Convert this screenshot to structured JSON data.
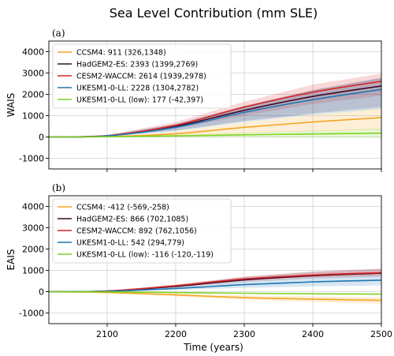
{
  "chart_data": {
    "type": "line",
    "title": "Sea Level Contribution (mm SLE)",
    "xlabel": "Time (years)",
    "xlim": [
      2015,
      2500
    ],
    "xticks": [
      2100,
      2200,
      2300,
      2400,
      2500
    ],
    "ylim": [
      -1500,
      4500
    ],
    "yticks": [
      -1000,
      0,
      1000,
      2000,
      3000,
      4000
    ],
    "grid": true,
    "legend_position": "upper-left",
    "panels": [
      {
        "label": "(a)",
        "ylabel": "WAIS",
        "series": [
          {
            "name": "CCSM4: 911 (326,1348)",
            "color": "#f5a623",
            "x": [
              2015,
              2100,
              2200,
              2300,
              2400,
              2500
            ],
            "values": [
              0,
              20,
              150,
              450,
              700,
              911
            ],
            "lower": [
              0,
              10,
              60,
              160,
              260,
              326
            ],
            "upper": [
              0,
              30,
              250,
              700,
              1050,
              1348
            ]
          },
          {
            "name": "HadGEM2-ES: 2393 (1399,2769)",
            "color": "#3b0a2e",
            "x": [
              2015,
              2100,
              2200,
              2300,
              2400,
              2500
            ],
            "values": [
              0,
              60,
              500,
              1250,
              1900,
              2393
            ],
            "lower": [
              0,
              40,
              300,
              750,
              1100,
              1399
            ],
            "upper": [
              0,
              80,
              600,
              1450,
              2200,
              2769
            ]
          },
          {
            "name": "CESM2-WACCM: 2614 (1939,2978)",
            "color": "#d62728",
            "x": [
              2015,
              2100,
              2200,
              2300,
              2400,
              2500
            ],
            "values": [
              0,
              60,
              550,
              1400,
              2100,
              2614
            ],
            "lower": [
              0,
              40,
              400,
              1000,
              1550,
              1939
            ],
            "upper": [
              0,
              90,
              700,
              1650,
              2450,
              2978
            ]
          },
          {
            "name": "UKESM1-0-LL: 2228 (1304,2782)",
            "color": "#1f77b4",
            "x": [
              2015,
              2100,
              2200,
              2300,
              2400,
              2500
            ],
            "values": [
              0,
              50,
              450,
              1150,
              1750,
              2228
            ],
            "lower": [
              0,
              30,
              270,
              700,
              1050,
              1304
            ],
            "upper": [
              0,
              70,
              600,
              1450,
              2200,
              2782
            ]
          },
          {
            "name": "UKESM1-0-LL (low): 177 (-42,397)",
            "color": "#7ed321",
            "x": [
              2015,
              2100,
              2200,
              2300,
              2400,
              2500
            ],
            "values": [
              0,
              10,
              50,
              100,
              140,
              177
            ],
            "lower": [
              0,
              0,
              -10,
              -20,
              -30,
              -42
            ],
            "upper": [
              0,
              20,
              100,
              200,
              300,
              397
            ]
          }
        ]
      },
      {
        "label": "(b)",
        "ylabel": "EAIS",
        "series": [
          {
            "name": "CCSM4: -412 (-569,-258)",
            "color": "#f5a623",
            "x": [
              2015,
              2100,
              2200,
              2300,
              2400,
              2500
            ],
            "values": [
              0,
              -40,
              -150,
              -280,
              -350,
              -412
            ],
            "lower": [
              0,
              -60,
              -220,
              -380,
              -480,
              -569
            ],
            "upper": [
              0,
              -20,
              -90,
              -170,
              -220,
              -258
            ]
          },
          {
            "name": "HadGEM2-ES: 866 (702,1085)",
            "color": "#3b0a2e",
            "x": [
              2015,
              2100,
              2200,
              2300,
              2400,
              2500
            ],
            "values": [
              0,
              30,
              250,
              550,
              750,
              866
            ],
            "lower": [
              0,
              20,
              200,
              450,
              620,
              702
            ],
            "upper": [
              0,
              40,
              320,
              700,
              950,
              1085
            ]
          },
          {
            "name": "CESM2-WACCM: 892 (762,1056)",
            "color": "#d62728",
            "x": [
              2015,
              2100,
              2200,
              2300,
              2400,
              2500
            ],
            "values": [
              0,
              30,
              280,
              600,
              780,
              892
            ],
            "lower": [
              0,
              20,
              230,
              500,
              670,
              762
            ],
            "upper": [
              0,
              45,
              330,
              700,
              920,
              1056
            ]
          },
          {
            "name": "UKESM1-0-LL: 542 (294,779)",
            "color": "#1f77b4",
            "x": [
              2015,
              2100,
              2200,
              2300,
              2400,
              2500
            ],
            "values": [
              0,
              20,
              150,
              330,
              460,
              542
            ],
            "lower": [
              0,
              10,
              80,
              180,
              250,
              294
            ],
            "upper": [
              0,
              30,
              220,
              480,
              660,
              779
            ]
          },
          {
            "name": "UKESM1-0-LL (low): -116 (-120,-119)",
            "color": "#7ed321",
            "x": [
              2015,
              2100,
              2200,
              2300,
              2400,
              2500
            ],
            "values": [
              0,
              -10,
              -40,
              -75,
              -100,
              -116
            ],
            "lower": [
              0,
              -12,
              -45,
              -80,
              -105,
              -120
            ],
            "upper": [
              0,
              -8,
              -35,
              -70,
              -98,
              -119
            ]
          }
        ]
      }
    ]
  }
}
